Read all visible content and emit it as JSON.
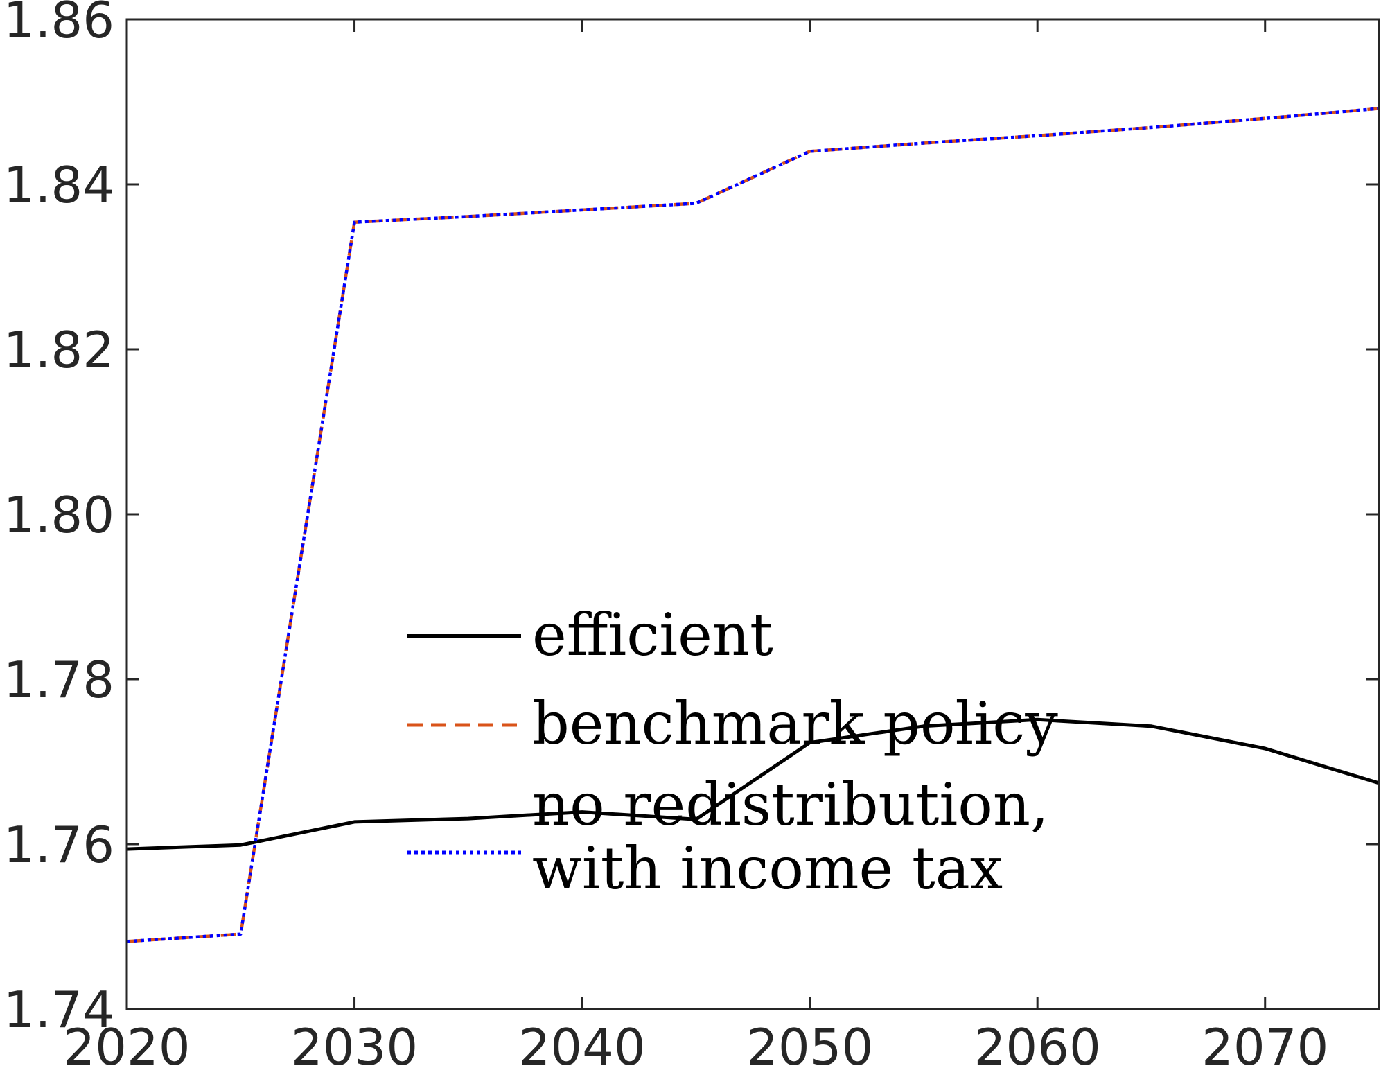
{
  "chart_data": {
    "type": "line",
    "title": "",
    "xlabel": "",
    "ylabel": "",
    "xlim": [
      2020,
      2075
    ],
    "ylim": [
      1.74,
      1.86
    ],
    "xticks": [
      2020,
      2030,
      2040,
      2050,
      2060,
      2070
    ],
    "yticks": [
      1.74,
      1.76,
      1.78,
      1.8,
      1.82,
      1.84,
      1.86
    ],
    "xtick_labels": [
      "2020",
      "2030",
      "2040",
      "2050",
      "2060",
      "2070"
    ],
    "ytick_labels": [
      "1.74",
      "1.76",
      "1.78",
      "1.80",
      "1.82",
      "1.84",
      "1.86"
    ],
    "grid": false,
    "legend_position": "center",
    "x": [
      2020,
      2025,
      2030,
      2035,
      2040,
      2045,
      2050,
      2055,
      2060,
      2065,
      2070,
      2075
    ],
    "series": [
      {
        "name": "efficient",
        "color": "#000000",
        "style": "solid",
        "values": [
          1.7594,
          1.7599,
          1.7627,
          1.7631,
          1.7639,
          1.763,
          1.7723,
          1.7743,
          1.7751,
          1.7743,
          1.7716,
          1.7674
        ]
      },
      {
        "name": "benchmark policy",
        "color": "#D95319",
        "style": "dashed",
        "values": [
          1.7482,
          1.7491,
          1.8354,
          1.8361,
          1.8369,
          1.8377,
          1.844,
          1.845,
          1.8459,
          1.8469,
          1.848,
          1.8492
        ]
      },
      {
        "name": "no redistribution, with income tax",
        "name_lines": [
          "no redistribution,",
          "with income tax"
        ],
        "color": "#0000FF",
        "style": "dotted",
        "values": [
          1.7482,
          1.7491,
          1.8354,
          1.8361,
          1.8369,
          1.8377,
          1.844,
          1.845,
          1.8459,
          1.8469,
          1.848,
          1.8492
        ]
      }
    ]
  }
}
